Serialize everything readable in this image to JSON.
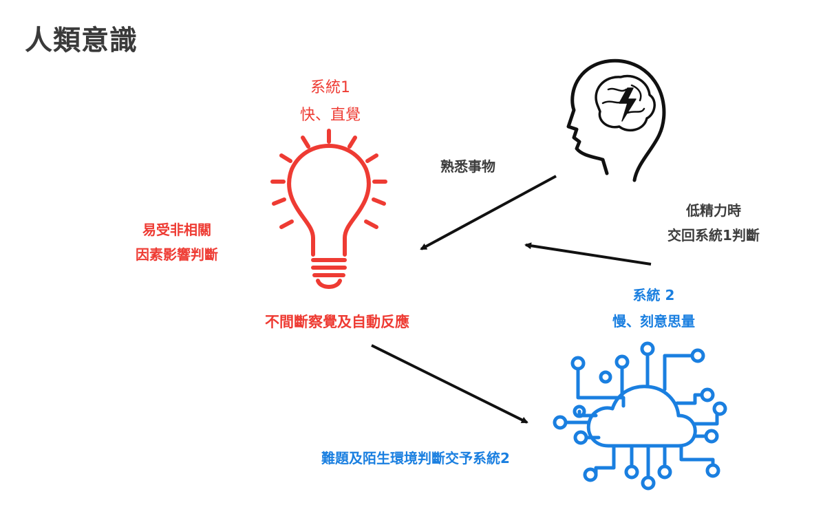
{
  "title": "人類意識",
  "system1": {
    "name": "系統1",
    "desc": "快、直覺",
    "side_line1": "易受非相關",
    "side_line2": "因素影響判斷",
    "caption": "不間斷察覺及自動反應",
    "color": "#ee3b33"
  },
  "system2": {
    "name": "系統 2",
    "desc": "慢、刻意思量",
    "caption": "難題及陌生環境判斷交予系統2",
    "color": "#1a7fe0"
  },
  "arrows": {
    "familiar": "熟悉事物",
    "low_energy_line1": "低精力時",
    "low_energy_line2": "交回系統1判斷"
  },
  "icons": [
    "lightbulb-icon",
    "head-brain-icon",
    "cloud-circuit-icon"
  ]
}
